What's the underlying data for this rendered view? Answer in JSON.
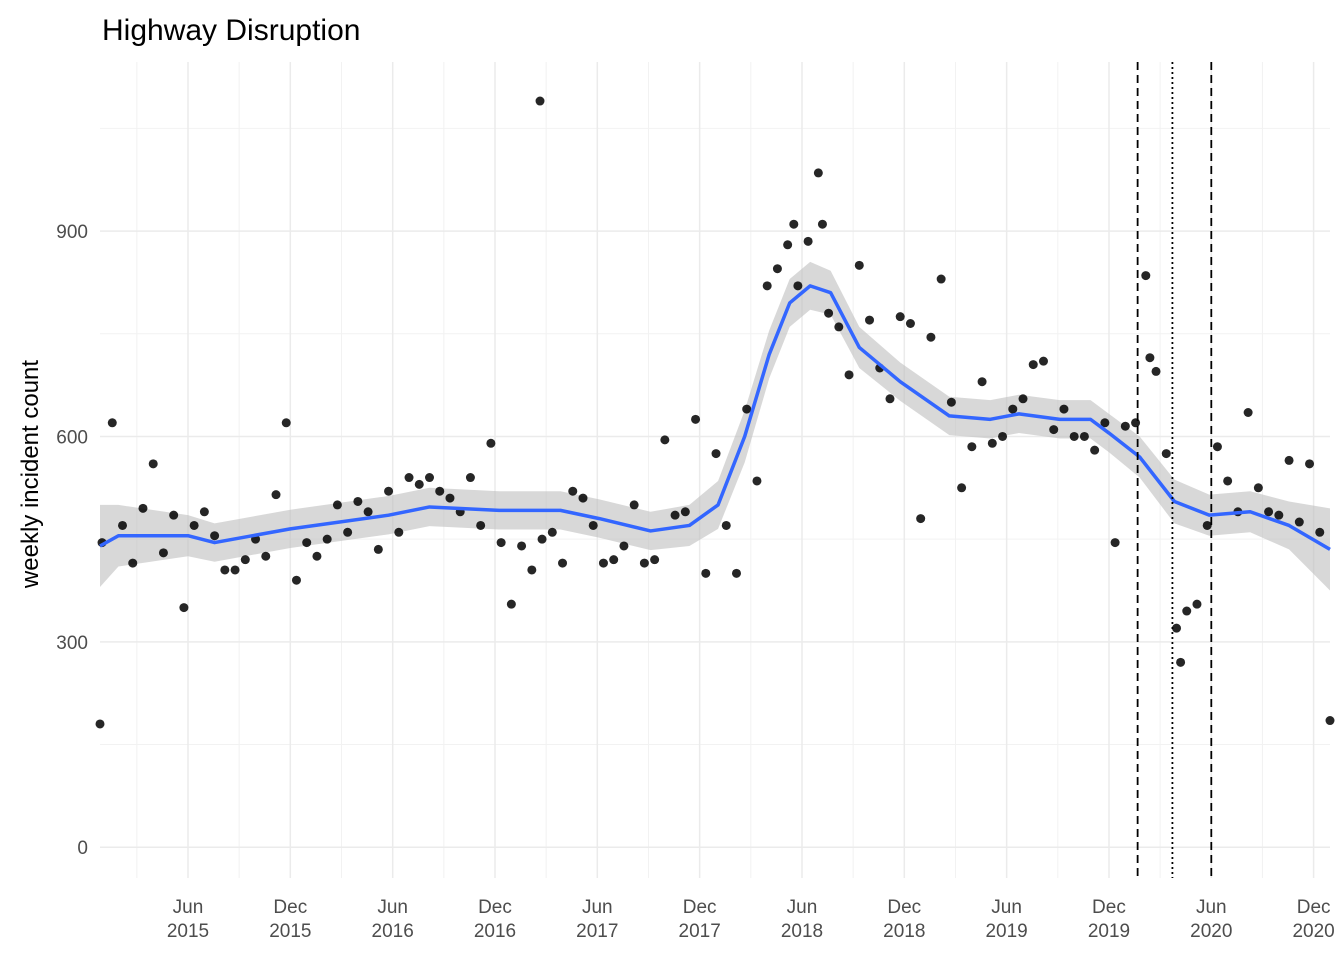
{
  "chart_data": {
    "type": "scatter",
    "title": "Highway Disruption",
    "y_label": "weekly incident count",
    "point_color": "#000000",
    "x": [
      2014.99,
      2015.0,
      2015.05,
      2015.1,
      2015.15,
      2015.2,
      2015.25,
      2015.3,
      2015.35,
      2015.4,
      2015.45,
      2015.5,
      2015.55,
      2015.6,
      2015.65,
      2015.7,
      2015.75,
      2015.8,
      2015.85,
      2015.9,
      2015.95,
      2016.0,
      2016.05,
      2016.1,
      2016.15,
      2016.2,
      2016.25,
      2016.3,
      2016.35,
      2016.4,
      2016.45,
      2016.5,
      2016.55,
      2016.6,
      2016.65,
      2016.7,
      2016.75,
      2016.8,
      2016.85,
      2016.9,
      2016.95,
      2017.0,
      2017.05,
      2017.1,
      2017.14,
      2017.15,
      2017.2,
      2017.25,
      2017.3,
      2017.35,
      2017.4,
      2017.45,
      2017.5,
      2017.55,
      2017.6,
      2017.65,
      2017.7,
      2017.75,
      2017.8,
      2017.85,
      2017.9,
      2017.95,
      2018.0,
      2018.05,
      2018.1,
      2018.15,
      2018.2,
      2018.25,
      2018.3,
      2018.35,
      2018.38,
      2018.4,
      2018.45,
      2018.5,
      2018.52,
      2018.55,
      2018.6,
      2018.65,
      2018.7,
      2018.75,
      2018.8,
      2018.85,
      2018.9,
      2018.95,
      2019.0,
      2019.05,
      2019.1,
      2019.15,
      2019.2,
      2019.25,
      2019.3,
      2019.35,
      2019.4,
      2019.45,
      2019.5,
      2019.55,
      2019.6,
      2019.65,
      2019.7,
      2019.75,
      2019.8,
      2019.85,
      2019.9,
      2019.95,
      2020.0,
      2020.05,
      2020.1,
      2020.12,
      2020.15,
      2020.2,
      2020.25,
      2020.27,
      2020.3,
      2020.35,
      2020.4,
      2020.45,
      2020.5,
      2020.55,
      2020.6,
      2020.65,
      2020.7,
      2020.75,
      2020.8,
      2020.85,
      2020.9,
      2020.95,
      2021.0
    ],
    "values": [
      180,
      445,
      620,
      470,
      415,
      495,
      560,
      430,
      485,
      350,
      470,
      490,
      455,
      405,
      405,
      420,
      450,
      425,
      515,
      620,
      390,
      445,
      425,
      450,
      500,
      460,
      505,
      490,
      435,
      520,
      460,
      540,
      530,
      540,
      520,
      510,
      490,
      540,
      470,
      590,
      445,
      355,
      440,
      405,
      1090,
      450,
      460,
      415,
      520,
      510,
      470,
      415,
      420,
      440,
      500,
      415,
      420,
      595,
      485,
      490,
      625,
      400,
      575,
      470,
      400,
      640,
      535,
      820,
      845,
      880,
      910,
      820,
      885,
      985,
      910,
      780,
      760,
      690,
      850,
      770,
      700,
      655,
      775,
      765,
      480,
      745,
      830,
      650,
      525,
      585,
      680,
      590,
      600,
      640,
      655,
      705,
      710,
      610,
      640,
      600,
      600,
      580,
      620,
      445,
      615,
      620,
      835,
      715,
      695,
      575,
      320,
      270,
      345,
      355,
      470,
      585,
      535,
      490,
      635,
      525,
      490,
      485,
      565,
      475,
      560,
      460,
      185
    ],
    "smooth": {
      "color": "#3366ff",
      "band_color": "#bebebe",
      "x": [
        2014.99,
        2015.08,
        2015.42,
        2015.55,
        2015.92,
        2016.4,
        2016.6,
        2016.94,
        2017.24,
        2017.43,
        2017.68,
        2017.87,
        2018.01,
        2018.14,
        2018.26,
        2018.36,
        2018.46,
        2018.56,
        2018.7,
        2018.9,
        2019.14,
        2019.34,
        2019.48,
        2019.68,
        2019.83,
        2019.92,
        2020.07,
        2020.24,
        2020.41,
        2020.61,
        2020.8,
        2021.0
      ],
      "values": [
        440,
        455,
        455,
        445,
        465,
        485,
        497,
        492,
        492,
        480,
        462,
        470,
        500,
        600,
        720,
        795,
        820,
        810,
        730,
        680,
        630,
        625,
        633,
        625,
        625,
        605,
        570,
        505,
        485,
        490,
        470,
        435
      ],
      "lower": [
        380,
        410,
        425,
        417,
        437,
        457,
        469,
        464,
        464,
        452,
        434,
        440,
        465,
        562,
        685,
        760,
        785,
        778,
        700,
        652,
        602,
        597,
        605,
        597,
        597,
        577,
        540,
        473,
        455,
        460,
        435,
        375
      ],
      "upper": [
        500,
        500,
        485,
        473,
        493,
        513,
        525,
        520,
        520,
        508,
        490,
        500,
        535,
        638,
        755,
        830,
        855,
        842,
        760,
        708,
        658,
        653,
        661,
        653,
        653,
        633,
        600,
        537,
        515,
        520,
        505,
        495
      ]
    },
    "vlines": [
      {
        "x": 2020.06,
        "linetype": "dashed"
      },
      {
        "x": 2020.23,
        "linetype": "dotted"
      },
      {
        "x": 2020.42,
        "linetype": "dashed"
      }
    ],
    "xlim": [
      2014.99,
      2021.0
    ],
    "xticks": [
      {
        "value": 2015.42,
        "label": "Jun 2015"
      },
      {
        "value": 2015.92,
        "label": "Dec 2015"
      },
      {
        "value": 2016.42,
        "label": "Jun 2016"
      },
      {
        "value": 2016.92,
        "label": "Dec 2016"
      },
      {
        "value": 2017.42,
        "label": "Jun 2017"
      },
      {
        "value": 2017.92,
        "label": "Dec 2017"
      },
      {
        "value": 2018.42,
        "label": "Jun 2018"
      },
      {
        "value": 2018.92,
        "label": "Dec 2018"
      },
      {
        "value": 2019.42,
        "label": "Jun 2019"
      },
      {
        "value": 2019.92,
        "label": "Dec 2019"
      },
      {
        "value": 2020.42,
        "label": "Jun 2020"
      },
      {
        "value": 2020.92,
        "label": "Dec 2020"
      }
    ],
    "xminorticks": [
      2015.17,
      2015.67,
      2016.17,
      2016.67,
      2017.17,
      2017.67,
      2018.17,
      2018.67,
      2019.17,
      2019.67,
      2020.17,
      2020.67
    ],
    "ylim": [
      -45,
      1147
    ],
    "yticks": [
      0,
      300,
      600,
      900
    ],
    "yminorticks": [
      150,
      450,
      750,
      1050
    ],
    "grid": true
  }
}
